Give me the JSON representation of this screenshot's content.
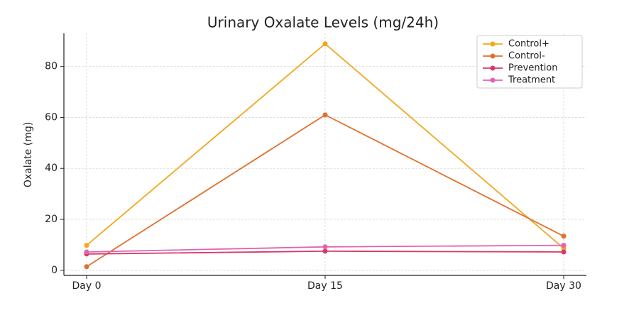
{
  "chart_data": {
    "type": "line",
    "title": "Urinary Oxalate Levels (mg/24h)",
    "y_label": "Oxalate (mg)",
    "categories": [
      "Day 0",
      "Day 15",
      "Day 30"
    ],
    "series": [
      {
        "name": "Control+",
        "color": "#f0a91e",
        "values": [
          9.8,
          88.9,
          8.6
        ]
      },
      {
        "name": "Control-",
        "color": "#e0702e",
        "values": [
          1.4,
          61,
          13.4
        ]
      },
      {
        "name": "Prevention",
        "color": "#d63a6a",
        "values": [
          6.4,
          7.5,
          7.2
        ]
      },
      {
        "name": "Treatment",
        "color": "#e063b4",
        "values": [
          7.2,
          9.2,
          9.8
        ]
      }
    ],
    "ylim": [
      -2,
      93
    ],
    "yticks": [
      0,
      20,
      40,
      60,
      80
    ],
    "grid": true,
    "legend": "upper right"
  }
}
